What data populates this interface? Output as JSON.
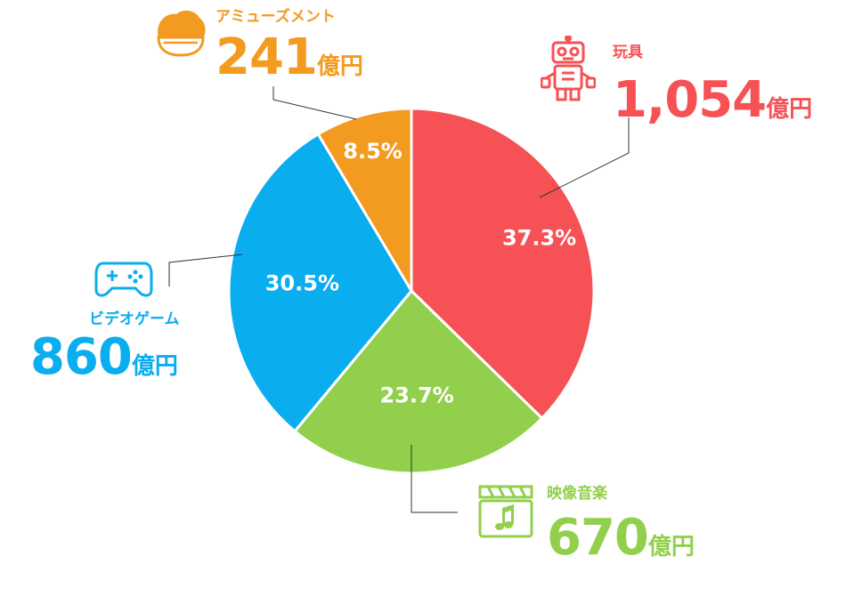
{
  "colors": {
    "toys": "#f65255",
    "video_music": "#92cf4d",
    "video_games": "#0aadee",
    "amusement": "#f39a21"
  },
  "chart_data": {
    "type": "pie",
    "categories": [
      "玩具",
      "映像音楽",
      "ビデオゲーム",
      "アミューズメント"
    ],
    "values": [
      1054,
      670,
      860,
      241
    ],
    "percent_labels": [
      "37.3%",
      "23.7%",
      "30.5%",
      "8.5%"
    ],
    "amount_labels": [
      "1,054",
      "670",
      "860",
      "241"
    ],
    "unit": "億円",
    "icons": [
      "robot-icon",
      "clapperboard-icon",
      "gamepad-icon",
      "onigiri-icon"
    ],
    "start_angle_deg": 0,
    "direction": "clockwise"
  }
}
